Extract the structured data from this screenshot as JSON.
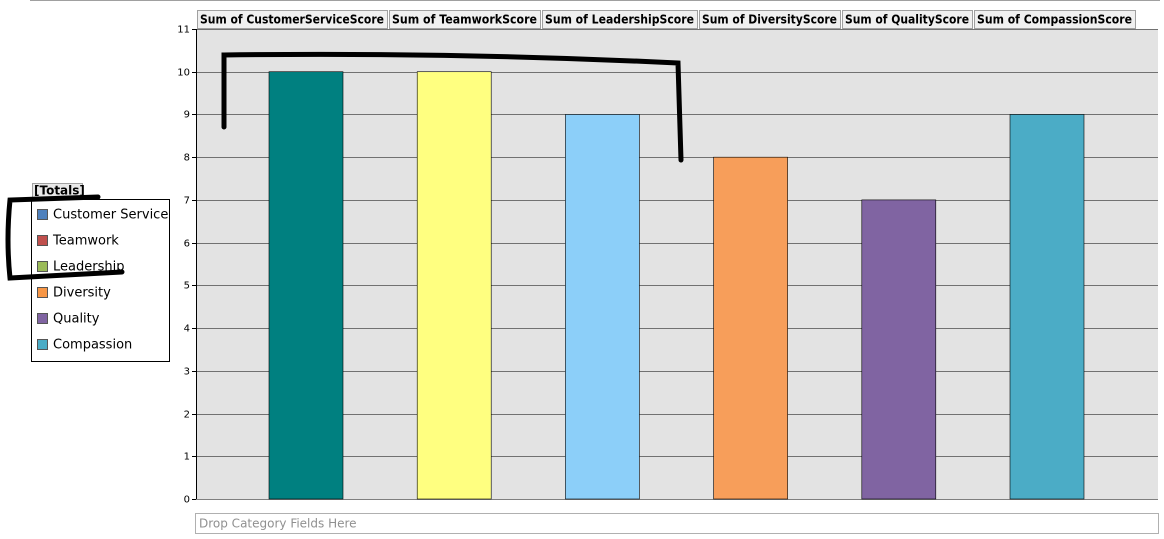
{
  "chart_data": {
    "type": "bar",
    "data_fields": [
      "Sum of CustomerServiceScore",
      "Sum of TeamworkScore",
      "Sum of LeadershipScore",
      "Sum of DiversityScore",
      "Sum of QualityScore",
      "Sum of CompassionScore"
    ],
    "legend_title": "[Totals]",
    "category_drop_zone": "Drop Category Fields Here",
    "series": [
      {
        "name": "Customer Service",
        "color": "#008080",
        "legend_color": "#4f81bd",
        "values": [
          10
        ]
      },
      {
        "name": "Teamwork",
        "color": "#ffff80",
        "legend_color": "#c0504d",
        "values": [
          10
        ]
      },
      {
        "name": "Leadership",
        "color": "#8ccff9",
        "legend_color": "#9bbb59",
        "values": [
          9
        ]
      },
      {
        "name": "Diversity",
        "color": "#f79e5a",
        "legend_color": "#f79646",
        "values": [
          8
        ]
      },
      {
        "name": "Quality",
        "color": "#8064a2",
        "legend_color": "#8064a2",
        "values": [
          7
        ]
      },
      {
        "name": "Compassion",
        "color": "#4bacc6",
        "legend_color": "#4bacc6",
        "values": [
          9
        ]
      }
    ],
    "ylim": [
      0,
      11
    ],
    "yticks": [
      0,
      1,
      2,
      3,
      4,
      5,
      6,
      7,
      8,
      9,
      10,
      11
    ],
    "grid": true
  }
}
